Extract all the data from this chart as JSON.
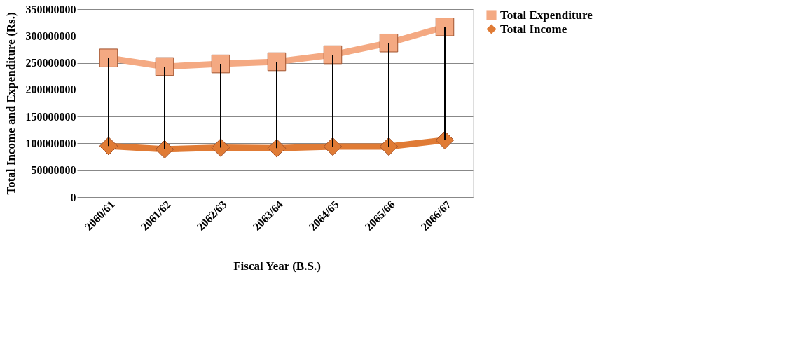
{
  "chart_data": {
    "type": "line",
    "xlabel": "Fiscal Year (B.S.)",
    "ylabel": "Total Income and Expenditure (Rs.)",
    "categories": [
      "2060/61",
      "2061/62",
      "2062/63",
      "2063/64",
      "2064/65",
      "2065/66",
      "2066/67"
    ],
    "series": [
      {
        "name": "Total Expenditure",
        "color": "#f4a982",
        "marker": "square",
        "values": [
          259000000,
          243000000,
          248000000,
          252000000,
          265000000,
          287000000,
          317000000
        ]
      },
      {
        "name": "Total Income",
        "color": "#e07b35",
        "marker": "diamond",
        "values": [
          95000000,
          89000000,
          92000000,
          91000000,
          94000000,
          94000000,
          106000000
        ],
        "errors": [
          [
            95000000,
            259000000
          ],
          [
            89000000,
            243000000
          ],
          [
            92000000,
            248000000
          ],
          [
            91000000,
            252000000
          ],
          [
            94000000,
            265000000
          ],
          [
            94000000,
            287000000
          ],
          [
            106000000,
            317000000
          ]
        ]
      }
    ],
    "ylim": [
      0,
      350000000
    ],
    "yticks": [
      0,
      50000000,
      100000000,
      150000000,
      200000000,
      250000000,
      300000000,
      350000000
    ],
    "grid": "y",
    "legend": "right",
    "line_style": "solid"
  }
}
